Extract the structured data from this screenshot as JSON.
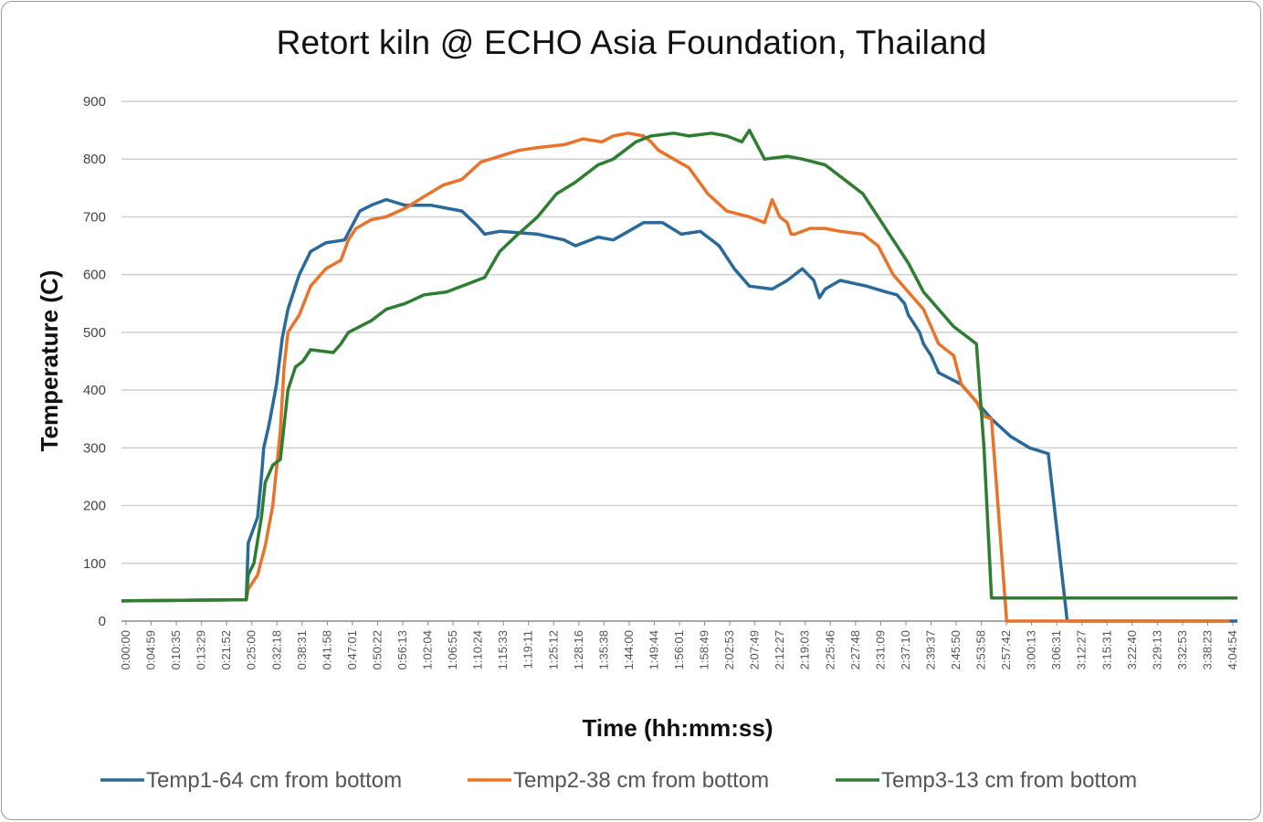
{
  "chart_data": {
    "type": "line",
    "title": "Retort kiln @ ECHO Asia Foundation, Thailand",
    "xlabel": "Time (hh:mm:ss)",
    "ylabel": "Temperature (C)",
    "ylim": [
      0,
      900
    ],
    "yticks": [
      0,
      100,
      200,
      300,
      400,
      500,
      600,
      700,
      800,
      900
    ],
    "xlim": [
      0,
      295
    ],
    "grid": true,
    "legend_position": "bottom",
    "x_tick_labels": [
      "0:00:00",
      "0:04:59",
      "0:10:35",
      "0:13:29",
      "0:21:52",
      "0:25:00",
      "0:32:18",
      "0:38:31",
      "0:41:58",
      "0:47:01",
      "0:50:22",
      "0:56:13",
      "1:02:04",
      "1:06:55",
      "1:10:24",
      "1:15:33",
      "1:19:11",
      "1:25:12",
      "1:28:16",
      "1:35:38",
      "1:44:00",
      "1:49:44",
      "1:56:01",
      "1:58:49",
      "2:02:53",
      "2:07:49",
      "2:12:27",
      "2:19:03",
      "2:25:46",
      "2:27:48",
      "2:31:09",
      "2:37:10",
      "2:39:37",
      "2:45:50",
      "2:53:58",
      "2:57:42",
      "3:00:13",
      "3:06:31",
      "3:12:27",
      "3:15:31",
      "3:22:40",
      "3:29:13",
      "3:32:53",
      "3:38:23",
      "4:04:54"
    ],
    "series": [
      {
        "name": "Temp1-64 cm from bottom",
        "color": "#2a6a9a",
        "x": [
          0,
          33,
          33.5,
          36,
          37,
          37.6,
          39,
          41,
          42.5,
          44,
          45,
          46,
          47,
          50,
          54,
          59,
          63,
          66,
          70,
          75,
          78,
          82,
          86,
          90,
          94,
          96,
          100,
          110,
          117,
          120,
          126,
          130,
          134,
          138,
          143,
          148,
          153,
          158,
          160,
          162,
          166,
          172,
          176,
          180,
          183,
          184.5,
          186,
          190,
          197,
          202,
          205,
          207,
          208,
          209,
          211,
          212,
          214,
          216,
          222,
          226,
          230,
          235,
          240,
          245,
          250,
          255,
          260,
          265,
          270,
          276,
          282,
          286,
          287,
          288,
          295
        ],
        "y": [
          35,
          37,
          135,
          180,
          250,
          300,
          340,
          410,
          490,
          540,
          560,
          580,
          600,
          640,
          655,
          660,
          710,
          720,
          730,
          720,
          720,
          720,
          715,
          710,
          685,
          670,
          675,
          670,
          660,
          650,
          665,
          660,
          675,
          690,
          690,
          670,
          675,
          650,
          630,
          610,
          580,
          575,
          590,
          610,
          590,
          560,
          575,
          590,
          580,
          570,
          565,
          550,
          530,
          520,
          500,
          480,
          460,
          430,
          410,
          380,
          350,
          320,
          300,
          290,
          0,
          0,
          0,
          0,
          0,
          0,
          0,
          0,
          0,
          0,
          0
        ]
      },
      {
        "name": "Temp2-38 cm from bottom",
        "color": "#e8742c",
        "x": [
          0,
          33,
          33.5,
          36,
          38,
          40,
          42,
          43,
          44,
          45,
          46,
          47,
          50,
          54,
          58,
          60,
          62,
          66,
          70,
          75,
          80,
          85,
          90,
          95,
          100,
          105,
          110,
          117,
          122,
          127,
          130,
          134,
          138,
          140,
          142,
          146,
          150,
          155,
          160,
          166,
          170,
          172,
          174,
          176,
          177,
          178,
          182,
          186,
          190,
          196,
          200,
          204,
          208,
          212,
          216,
          220,
          222,
          224,
          226,
          228,
          230,
          234,
          238,
          242,
          246,
          250,
          255,
          260,
          265,
          270,
          276,
          282,
          286,
          287,
          288,
          290,
          293
        ],
        "y": [
          35,
          37,
          55,
          80,
          130,
          200,
          330,
          440,
          500,
          510,
          520,
          530,
          580,
          610,
          625,
          660,
          680,
          695,
          700,
          715,
          735,
          755,
          765,
          795,
          805,
          815,
          820,
          825,
          835,
          830,
          840,
          845,
          840,
          830,
          815,
          800,
          785,
          740,
          710,
          700,
          690,
          730,
          700,
          690,
          670,
          670,
          680,
          680,
          675,
          670,
          650,
          600,
          570,
          540,
          480,
          460,
          410,
          395,
          380,
          355,
          350,
          0,
          0,
          0,
          0,
          0,
          0,
          0,
          0,
          0,
          0,
          0,
          0,
          0,
          0,
          0,
          0
        ]
      },
      {
        "name": "Temp3-13 cm from bottom",
        "color": "#2e7d32",
        "x": [
          0,
          33,
          33.5,
          35,
          37,
          38,
          40,
          42,
          44,
          46,
          48,
          50,
          56,
          58,
          60,
          66,
          70,
          75,
          80,
          86,
          90,
          96,
          100,
          104,
          110,
          115,
          120,
          126,
          130,
          136,
          140,
          146,
          150,
          156,
          160,
          164,
          166,
          170,
          176,
          180,
          186,
          190,
          196,
          200,
          204,
          208,
          212,
          216,
          220,
          224,
          226,
          228,
          230,
          232,
          233,
          234,
          236,
          238,
          240,
          244,
          248,
          252,
          254,
          256,
          258,
          260,
          262,
          264,
          266,
          270,
          276,
          282,
          286,
          287,
          288,
          290,
          295
        ],
        "y": [
          35,
          37,
          80,
          100,
          180,
          240,
          270,
          280,
          400,
          440,
          450,
          470,
          465,
          480,
          500,
          520,
          540,
          550,
          565,
          570,
          580,
          595,
          640,
          665,
          700,
          740,
          760,
          790,
          800,
          830,
          840,
          845,
          840,
          845,
          840,
          830,
          850,
          800,
          805,
          800,
          790,
          770,
          740,
          700,
          660,
          620,
          570,
          540,
          510,
          490,
          480,
          300,
          40,
          40,
          40,
          40,
          40,
          40,
          40,
          40,
          40,
          40,
          40,
          40,
          40,
          40,
          40,
          40,
          40,
          40,
          40,
          40,
          40,
          40,
          40,
          40,
          40
        ]
      }
    ]
  }
}
